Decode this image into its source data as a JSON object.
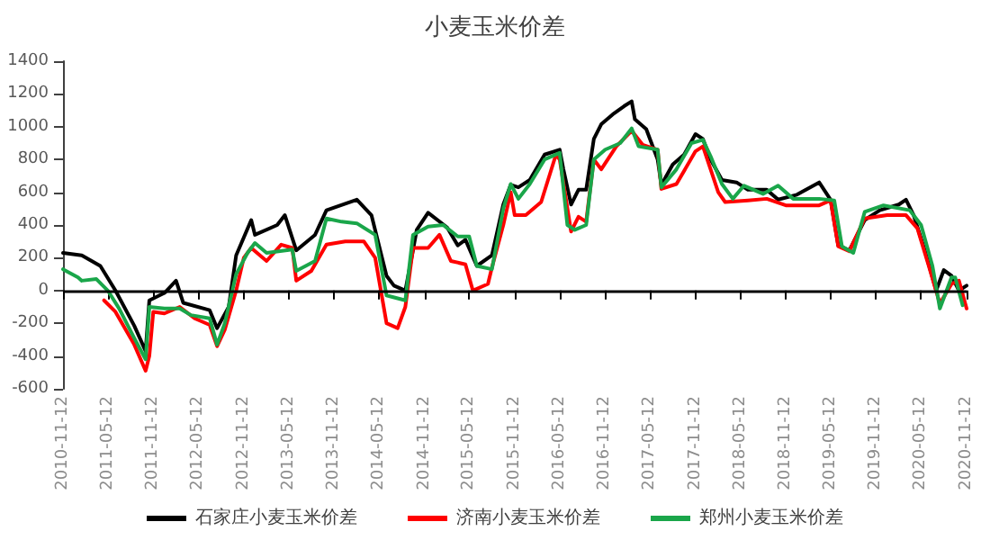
{
  "chart_data": {
    "type": "line",
    "title": "小麦玉米价差",
    "xlim": [
      "2010-11-12",
      "2020-11-12"
    ],
    "xticks": [
      "2010-11-12",
      "2011-05-12",
      "2011-11-12",
      "2012-05-12",
      "2012-11-12",
      "2013-05-12",
      "2013-11-12",
      "2014-05-12",
      "2014-11-12",
      "2015-05-12",
      "2015-11-12",
      "2016-05-12",
      "2016-11-12",
      "2017-05-12",
      "2017-11-12",
      "2018-05-12",
      "2018-11-12",
      "2019-05-12",
      "2019-11-12",
      "2020-05-12",
      "2020-11-12"
    ],
    "ylim": [
      -600,
      1400
    ],
    "yticks": [
      -600,
      -400,
      -200,
      0,
      200,
      400,
      600,
      800,
      1000,
      1200,
      1400
    ],
    "grid": false,
    "ref_lines": [
      {
        "axis": "y",
        "value": 0,
        "color": "#000000"
      }
    ],
    "legend": "bottom",
    "marker": "none",
    "line_style": "solid",
    "series": [
      {
        "name": "石家庄小麦玉米价差",
        "color": "#000000",
        "x": [
          "2010-11-12",
          "2011-01-27",
          "2011-04-12",
          "2011-06-12",
          "2011-08-27",
          "2011-10-12",
          "2011-10-27",
          "2011-12-27",
          "2012-02-12",
          "2012-03-12",
          "2012-06-27",
          "2012-07-27",
          "2012-09-12",
          "2012-10-12",
          "2012-12-12",
          "2012-12-27",
          "2013-03-27",
          "2013-04-27",
          "2013-06-12",
          "2013-08-27",
          "2013-10-12",
          "2014-02-12",
          "2014-04-12",
          "2014-06-12",
          "2014-07-12",
          "2014-08-27",
          "2014-09-27",
          "2014-10-12",
          "2014-11-27",
          "2015-02-12",
          "2015-03-27",
          "2015-04-27",
          "2015-06-12",
          "2015-08-12",
          "2015-09-27",
          "2015-10-27",
          "2015-11-27",
          "2016-01-12",
          "2016-03-12",
          "2016-05-12",
          "2016-05-27",
          "2016-06-27",
          "2016-07-27",
          "2016-08-27",
          "2016-09-27",
          "2016-10-27",
          "2016-12-12",
          "2017-01-27",
          "2017-02-27",
          "2017-03-12",
          "2017-04-27",
          "2017-06-12",
          "2017-06-27",
          "2017-08-12",
          "2017-09-27",
          "2017-11-12",
          "2017-12-12",
          "2018-01-12",
          "2018-02-27",
          "2018-04-27",
          "2018-06-12",
          "2018-08-27",
          "2018-10-12",
          "2018-12-27",
          "2019-03-27",
          "2019-05-12",
          "2019-06-12",
          "2019-07-27",
          "2019-09-27",
          "2019-11-27",
          "2020-02-12",
          "2020-03-12",
          "2020-04-12",
          "2020-05-27",
          "2020-07-12",
          "2020-08-12",
          "2020-09-12",
          "2020-10-12",
          "2020-11-12"
        ],
        "values": [
          230,
          215,
          150,
          0,
          -215,
          -370,
          -60,
          -15,
          60,
          -75,
          -120,
          -230,
          -100,
          215,
          430,
          340,
          400,
          460,
          245,
          340,
          490,
          555,
          460,
          90,
          30,
          0,
          245,
          370,
          475,
          385,
          275,
          310,
          150,
          215,
          525,
          645,
          630,
          675,
          830,
          860,
          740,
          525,
          615,
          615,
          925,
          1015,
          1075,
          1125,
          1155,
          1045,
          985,
          800,
          645,
          770,
          830,
          955,
          925,
          800,
          675,
          660,
          615,
          615,
          555,
          585,
          660,
          555,
          275,
          245,
          430,
          490,
          525,
          555,
          460,
          245,
          0,
          125,
          90,
          0,
          30
        ]
      },
      {
        "name": "济南小麦玉米价差",
        "color": "#ff0000",
        "x": [
          "2011-04-27",
          "2011-06-12",
          "2011-08-27",
          "2011-10-12",
          "2011-10-27",
          "2011-11-12",
          "2011-12-27",
          "2012-02-27",
          "2012-04-27",
          "2012-06-27",
          "2012-07-27",
          "2012-08-27",
          "2012-10-12",
          "2012-11-12",
          "2012-12-12",
          "2013-02-12",
          "2013-04-12",
          "2013-05-27",
          "2013-06-12",
          "2013-08-12",
          "2013-10-12",
          "2013-12-27",
          "2014-03-12",
          "2014-04-27",
          "2014-06-12",
          "2014-07-27",
          "2014-08-27",
          "2014-09-27",
          "2014-11-27",
          "2015-01-12",
          "2015-02-27",
          "2015-04-27",
          "2015-05-27",
          "2015-07-27",
          "2015-08-12",
          "2015-09-27",
          "2015-10-27",
          "2015-11-12",
          "2015-12-27",
          "2016-02-27",
          "2016-04-27",
          "2016-05-12",
          "2016-06-27",
          "2016-07-27",
          "2016-08-27",
          "2016-09-27",
          "2016-10-27",
          "2016-12-27",
          "2017-02-27",
          "2017-04-12",
          "2017-06-12",
          "2017-06-27",
          "2017-08-27",
          "2017-11-12",
          "2017-12-12",
          "2018-01-12",
          "2018-02-12",
          "2018-03-12",
          "2018-06-12",
          "2018-08-27",
          "2018-11-12",
          "2019-03-27",
          "2019-05-12",
          "2019-06-12",
          "2019-07-27",
          "2019-09-27",
          "2019-12-27",
          "2020-03-12",
          "2020-04-27",
          "2020-06-12",
          "2020-07-27",
          "2020-09-12",
          "2020-10-12",
          "2020-11-12"
        ],
        "values": [
          -60,
          -130,
          -330,
          -490,
          -400,
          -130,
          -140,
          -100,
          -170,
          -210,
          -340,
          -240,
          0,
          200,
          260,
          180,
          280,
          260,
          60,
          120,
          280,
          300,
          300,
          200,
          -200,
          -230,
          -100,
          260,
          260,
          340,
          180,
          160,
          0,
          40,
          140,
          400,
          600,
          460,
          460,
          540,
          830,
          800,
          360,
          450,
          420,
          800,
          740,
          880,
          975,
          890,
          860,
          620,
          650,
          850,
          880,
          740,
          600,
          540,
          550,
          560,
          520,
          520,
          550,
          270,
          240,
          440,
          460,
          460,
          380,
          150,
          -80,
          40,
          60,
          -110
        ]
      },
      {
        "name": "郑州小麦玉米价差",
        "color": "#1aa64a",
        "x": [
          "2010-11-12",
          "2011-01-12",
          "2011-01-27",
          "2011-03-27",
          "2011-05-12",
          "2011-06-27",
          "2011-08-27",
          "2011-10-12",
          "2011-10-27",
          "2011-12-27",
          "2012-02-27",
          "2012-04-12",
          "2012-06-27",
          "2012-07-27",
          "2012-08-27",
          "2012-10-12",
          "2012-11-27",
          "2012-12-27",
          "2013-02-12",
          "2013-05-27",
          "2013-06-12",
          "2013-08-27",
          "2013-10-12",
          "2013-12-12",
          "2014-02-12",
          "2014-04-27",
          "2014-06-12",
          "2014-08-27",
          "2014-09-27",
          "2014-11-27",
          "2015-01-27",
          "2015-03-27",
          "2015-05-12",
          "2015-06-12",
          "2015-08-12",
          "2015-09-27",
          "2015-10-27",
          "2015-11-27",
          "2016-01-12",
          "2016-03-12",
          "2016-05-12",
          "2016-06-12",
          "2016-07-12",
          "2016-08-27",
          "2016-09-27",
          "2016-11-12",
          "2017-01-12",
          "2017-02-27",
          "2017-03-27",
          "2017-06-12",
          "2017-06-27",
          "2017-08-27",
          "2017-10-27",
          "2017-12-12",
          "2018-01-12",
          "2018-02-27",
          "2018-04-12",
          "2018-05-27",
          "2018-08-12",
          "2018-10-12",
          "2018-12-12",
          "2019-03-27",
          "2019-05-27",
          "2019-06-27",
          "2019-08-12",
          "2019-09-27",
          "2019-12-12",
          "2020-03-27",
          "2020-05-12",
          "2020-06-27",
          "2020-07-27",
          "2020-09-12",
          "2020-09-27",
          "2020-10-27"
        ],
        "values": [
          130,
          80,
          60,
          70,
          0,
          -110,
          -290,
          -420,
          -100,
          -110,
          -110,
          -150,
          -170,
          -330,
          -200,
          100,
          230,
          290,
          230,
          250,
          120,
          180,
          440,
          420,
          410,
          340,
          -30,
          -60,
          340,
          390,
          400,
          330,
          330,
          150,
          130,
          500,
          650,
          560,
          650,
          800,
          840,
          400,
          370,
          400,
          800,
          860,
          900,
          990,
          880,
          860,
          630,
          740,
          900,
          920,
          820,
          650,
          560,
          640,
          590,
          640,
          560,
          560,
          550,
          270,
          230,
          480,
          520,
          490,
          400,
          150,
          -110,
          80,
          80,
          -90
        ]
      }
    ]
  }
}
